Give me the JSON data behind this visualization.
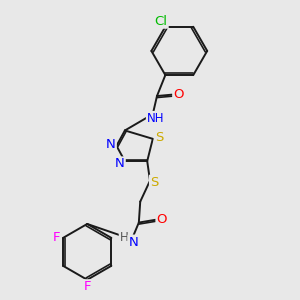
{
  "background_color": "#e8e8e8",
  "bond_color": "#1a1a1a",
  "atom_colors": {
    "N": "#0000ff",
    "O": "#ff0000",
    "S": "#ccaa00",
    "F": "#ff00ff",
    "Cl": "#00bb00",
    "H": "#555555"
  },
  "lw": 1.4,
  "fs": 8.5,
  "dbl_off": 0.055
}
